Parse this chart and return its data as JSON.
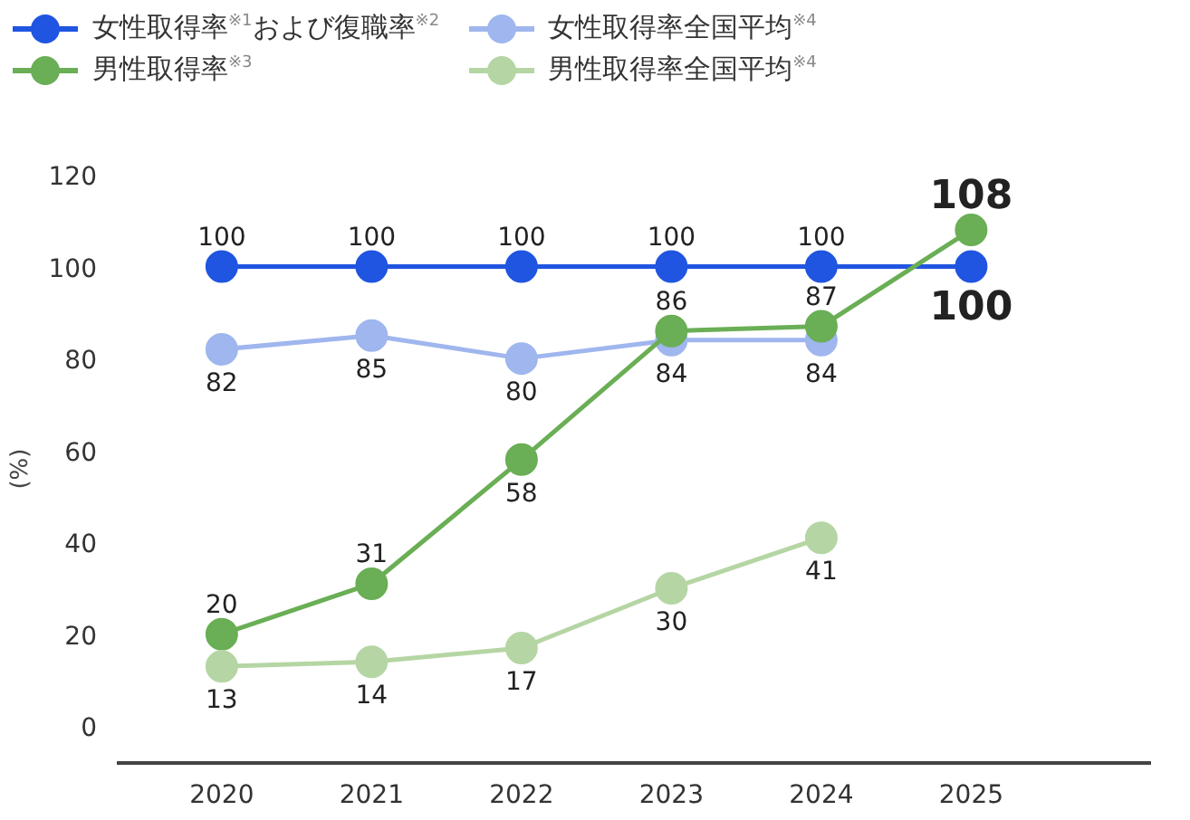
{
  "chart_data": {
    "type": "line",
    "ylabel": "(%)",
    "categories": [
      "2020",
      "2021",
      "2022",
      "2023",
      "2024",
      "2025"
    ],
    "series": [
      {
        "name": "女性取得率$^{※1}$および復職率$^{※2}$",
        "color": "#1f55e0",
        "values": [
          100,
          100,
          100,
          100,
          100,
          100
        ]
      },
      {
        "name": "女性取得率全国平均$^{※4}$",
        "color": "#9fb6ee",
        "values": [
          82,
          85,
          80,
          84,
          84,
          null
        ]
      },
      {
        "name": "男性取得率$^{※3}$",
        "color": "#6aae55",
        "values": [
          20,
          31,
          58,
          86,
          87,
          108
        ]
      },
      {
        "name": "男性取得率全国平均$^{※4}$",
        "color": "#b5d6a4",
        "values": [
          13,
          14,
          17,
          30,
          41,
          null
        ]
      }
    ],
    "ylim": [
      -8,
      120
    ],
    "yticks": [
      0,
      20,
      40,
      60,
      80,
      100,
      120
    ],
    "marker": "circle",
    "line_style": "solid",
    "grid": false,
    "data_labels": true,
    "legend": "top"
  }
}
